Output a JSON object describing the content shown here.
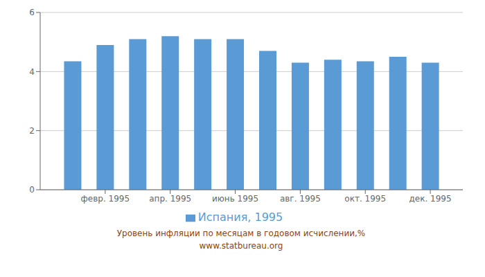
{
  "chart_data": {
    "type": "bar",
    "x": [
      1,
      2,
      3,
      4,
      5,
      6,
      7,
      8,
      9,
      10,
      11,
      12
    ],
    "series": [
      {
        "name": "Испания, 1995",
        "color": "#5B9BD5",
        "values": [
          4.35,
          4.9,
          5.1,
          5.2,
          5.1,
          5.1,
          4.7,
          4.3,
          4.4,
          4.35,
          4.5,
          4.3
        ]
      }
    ],
    "xlim": [
      0,
      13
    ],
    "xticks": [
      {
        "value": 2,
        "label": "февр. 1995"
      },
      {
        "value": 4,
        "label": "апр. 1995"
      },
      {
        "value": 6,
        "label": "июнь 1995"
      },
      {
        "value": 8,
        "label": "авг. 1995"
      },
      {
        "value": 10,
        "label": "окт. 1995"
      },
      {
        "value": 12,
        "label": "дек. 1995"
      }
    ],
    "ylim": [
      0,
      6
    ],
    "yticks": [
      0,
      2,
      4,
      6
    ],
    "grid": true,
    "legend": "bottom",
    "annotations": [
      "Уровень инфляции по месяцам в годовом исчислении,%",
      "www.statbureau.org"
    ]
  }
}
